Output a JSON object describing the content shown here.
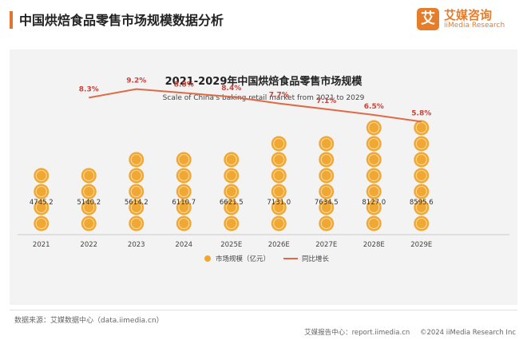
{
  "header": {
    "title": "中国烘焙食品零售市场规模数据分析"
  },
  "logo": {
    "mark": "艾",
    "name": "艾媒咨询",
    "sub": "iiMedia Research"
  },
  "chart_data": {
    "type": "bar",
    "title": "2021-2029年中国烘焙食品零售市场规模",
    "subtitle": "Scale of China's baking retail market from 2021 to 2029",
    "categories": [
      "2021",
      "2022",
      "2023",
      "2024",
      "2025E",
      "2026E",
      "2027E",
      "2028E",
      "2029E"
    ],
    "series": [
      {
        "name": "市场规模（亿元）",
        "type": "bar",
        "values": [
          4745.2,
          5140.2,
          5614.2,
          6110.7,
          6621.5,
          7131.0,
          7634.5,
          8127.0,
          8595.6
        ],
        "labels": [
          "4745.2",
          "5140.2",
          "5614.2",
          "6110.7",
          "6621.5",
          "7131.0",
          "7634.5",
          "8127.0",
          "8595.6"
        ],
        "color": "#f0a833"
      },
      {
        "name": "同比增长",
        "type": "line",
        "values": [
          null,
          8.3,
          9.2,
          8.8,
          8.4,
          7.7,
          7.1,
          6.5,
          5.8
        ],
        "labels": [
          "",
          "8.3%",
          "9.2%",
          "8.8%",
          "8.4%",
          "7.7%",
          "7.1%",
          "6.5%",
          "5.8%"
        ],
        "color": "#e06a45"
      }
    ],
    "bar_ylim": [
      0,
      9000
    ],
    "line_ylim": [
      0,
      10
    ],
    "legend_position": "bottom-center"
  },
  "footer": {
    "source": "数据来源：艾媒数据中心（data.iimedia.cn）",
    "report": "艾媒报告中心：report.iimedia.cn",
    "copyright": "©2024 iiMedia Research Inc"
  }
}
